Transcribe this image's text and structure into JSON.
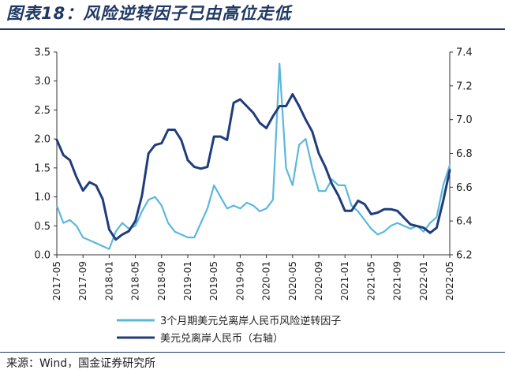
{
  "title": "图表18：风险逆转因子已由高位走低",
  "source": "来源：Wind，国金证券研究所",
  "colors": {
    "title": "#1f3864",
    "series_light": "#5bb8dc",
    "series_dark": "#1f3d7a"
  },
  "chart_data": {
    "type": "line",
    "title": "",
    "x_tick_labels": [
      "2017-05",
      "2017-09",
      "2018-01",
      "2018-05",
      "2018-09",
      "2019-01",
      "2019-05",
      "2019-09",
      "2020-01",
      "2020-05",
      "2020-09",
      "2021-01",
      "2021-05",
      "2021-09",
      "2022-01",
      "2022-05"
    ],
    "x_range": [
      "2017-05",
      "2022-05"
    ],
    "y_left": {
      "range": [
        0,
        3.5
      ],
      "ticks": [
        "0.0",
        "0.5",
        "1.0",
        "1.5",
        "2.0",
        "2.5",
        "3.0",
        "3.5"
      ]
    },
    "y_right": {
      "range": [
        6.2,
        7.4
      ],
      "ticks": [
        "6.2",
        "6.4",
        "6.6",
        "6.8",
        "7.0",
        "7.2",
        "7.4"
      ]
    },
    "grid": false,
    "legend_position": "bottom",
    "series": [
      {
        "name": "3个月期美元兑离岸人民币风险逆转因子",
        "axis": "left",
        "color": "#5bb8dc",
        "x": [
          "2017-05",
          "2017-06",
          "2017-07",
          "2017-08",
          "2017-09",
          "2017-10",
          "2017-11",
          "2017-12",
          "2018-01",
          "2018-02",
          "2018-03",
          "2018-04",
          "2018-05",
          "2018-06",
          "2018-07",
          "2018-08",
          "2018-09",
          "2018-10",
          "2018-11",
          "2018-12",
          "2019-01",
          "2019-02",
          "2019-03",
          "2019-04",
          "2019-05",
          "2019-06",
          "2019-07",
          "2019-08",
          "2019-09",
          "2019-10",
          "2019-11",
          "2019-12",
          "2020-01",
          "2020-02",
          "2020-03",
          "2020-04",
          "2020-05",
          "2020-06",
          "2020-07",
          "2020-08",
          "2020-09",
          "2020-10",
          "2020-11",
          "2020-12",
          "2021-01",
          "2021-02",
          "2021-03",
          "2021-04",
          "2021-05",
          "2021-06",
          "2021-07",
          "2021-08",
          "2021-09",
          "2021-10",
          "2021-11",
          "2021-12",
          "2022-01",
          "2022-02",
          "2022-03",
          "2022-04",
          "2022-05"
        ],
        "values": [
          0.85,
          0.55,
          0.6,
          0.5,
          0.3,
          0.25,
          0.2,
          0.15,
          0.1,
          0.4,
          0.55,
          0.45,
          0.5,
          0.75,
          0.95,
          1.0,
          0.85,
          0.55,
          0.4,
          0.35,
          0.3,
          0.3,
          0.55,
          0.8,
          1.2,
          1.0,
          0.8,
          0.85,
          0.8,
          0.9,
          0.85,
          0.75,
          0.8,
          0.95,
          3.3,
          1.5,
          1.2,
          1.9,
          2.0,
          1.5,
          1.1,
          1.1,
          1.3,
          1.2,
          1.2,
          0.85,
          0.75,
          0.6,
          0.45,
          0.35,
          0.4,
          0.5,
          0.55,
          0.5,
          0.45,
          0.5,
          0.4,
          0.55,
          0.65,
          1.2,
          1.55
        ]
      },
      {
        "name": "美元兑离岸人民币（右轴）",
        "axis": "right",
        "color": "#1f3d7a",
        "x": [
          "2017-05",
          "2017-06",
          "2017-07",
          "2017-08",
          "2017-09",
          "2017-10",
          "2017-11",
          "2017-12",
          "2018-01",
          "2018-02",
          "2018-03",
          "2018-04",
          "2018-05",
          "2018-06",
          "2018-07",
          "2018-08",
          "2018-09",
          "2018-10",
          "2018-11",
          "2018-12",
          "2019-01",
          "2019-02",
          "2019-03",
          "2019-04",
          "2019-05",
          "2019-06",
          "2019-07",
          "2019-08",
          "2019-09",
          "2019-10",
          "2019-11",
          "2019-12",
          "2020-01",
          "2020-02",
          "2020-03",
          "2020-04",
          "2020-05",
          "2020-06",
          "2020-07",
          "2020-08",
          "2020-09",
          "2020-10",
          "2020-11",
          "2020-12",
          "2021-01",
          "2021-02",
          "2021-03",
          "2021-04",
          "2021-05",
          "2021-06",
          "2021-07",
          "2021-08",
          "2021-09",
          "2021-10",
          "2021-11",
          "2021-12",
          "2022-01",
          "2022-02",
          "2022-03",
          "2022-04",
          "2022-05"
        ],
        "values": [
          6.88,
          6.79,
          6.76,
          6.66,
          6.58,
          6.63,
          6.61,
          6.53,
          6.35,
          6.29,
          6.32,
          6.34,
          6.4,
          6.55,
          6.8,
          6.85,
          6.86,
          6.94,
          6.94,
          6.88,
          6.76,
          6.72,
          6.71,
          6.72,
          6.9,
          6.9,
          6.88,
          7.1,
          7.12,
          7.08,
          7.04,
          6.98,
          6.95,
          7.02,
          7.08,
          7.08,
          7.15,
          7.08,
          7.0,
          6.93,
          6.8,
          6.72,
          6.62,
          6.55,
          6.46,
          6.46,
          6.52,
          6.5,
          6.44,
          6.45,
          6.47,
          6.47,
          6.46,
          6.42,
          6.38,
          6.37,
          6.36,
          6.33,
          6.36,
          6.52,
          6.7
        ]
      }
    ]
  }
}
